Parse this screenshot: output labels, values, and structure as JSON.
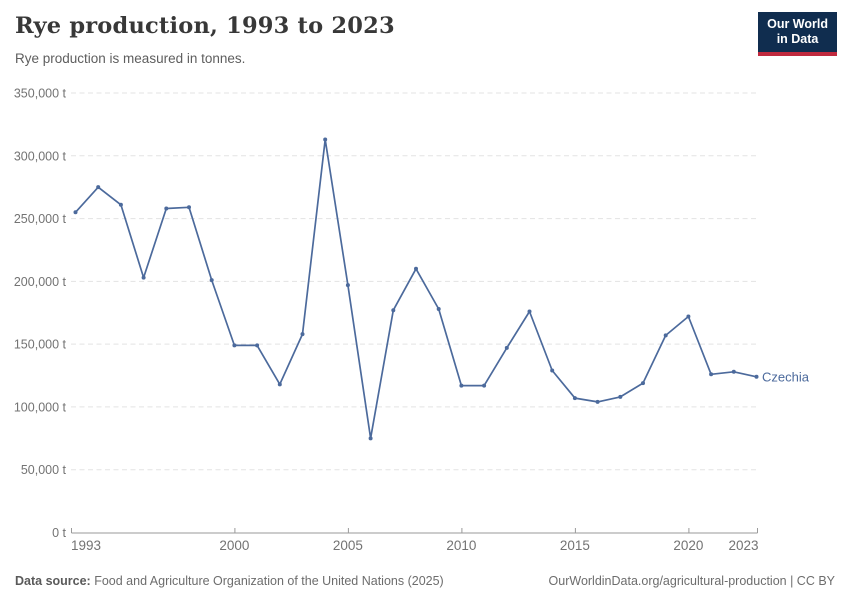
{
  "header": {
    "title": "Rye production, 1993 to 2023",
    "subtitle": "Rye production is measured in tonnes.",
    "logo_line1": "Our World",
    "logo_line2": "in Data"
  },
  "chart_data": {
    "type": "line",
    "title": "Rye production, 1993 to 2023",
    "unit": "tonnes",
    "xlabel": "",
    "ylabel": "",
    "xlim": [
      1993,
      2023
    ],
    "ylim": [
      0,
      350000
    ],
    "grid": "horizontal-dashed",
    "legend_position": "end-of-line-label",
    "x_ticks": [
      1993,
      2000,
      2005,
      2010,
      2015,
      2020,
      2023
    ],
    "x_tick_labels": [
      "1993",
      "2000",
      "2005",
      "2010",
      "2015",
      "2020",
      "2023"
    ],
    "y_ticks": [
      0,
      50000,
      100000,
      150000,
      200000,
      250000,
      300000,
      350000
    ],
    "y_tick_labels": [
      "0 t",
      "50,000 t",
      "100,000 t",
      "150,000 t",
      "200,000 t",
      "250,000 t",
      "300,000 t",
      "350,000 t"
    ],
    "x": [
      1993,
      1994,
      1995,
      1996,
      1997,
      1998,
      1999,
      2000,
      2001,
      2002,
      2003,
      2004,
      2005,
      2006,
      2007,
      2008,
      2009,
      2010,
      2011,
      2012,
      2013,
      2014,
      2015,
      2016,
      2017,
      2018,
      2019,
      2020,
      2021,
      2022,
      2023
    ],
    "series": [
      {
        "name": "Czechia",
        "color": "#4C6A9C",
        "values": [
          255000,
          275000,
          261000,
          203000,
          258000,
          259000,
          201000,
          149000,
          149000,
          118000,
          158000,
          313000,
          197000,
          75000,
          177000,
          210000,
          178000,
          117000,
          117000,
          147000,
          176000,
          129000,
          107000,
          104000,
          108000,
          119000,
          157000,
          172000,
          126000,
          128000,
          124000
        ]
      }
    ]
  },
  "footer": {
    "source_label": "Data source:",
    "source_text": " Food and Agriculture Organization of the United Nations (2025)",
    "credit": "OurWorldinData.org/agricultural-production | CC BY"
  },
  "colors": {
    "line": "#4C6A9C",
    "gridline": "#e3e3e3",
    "axis": "#9a9a9a",
    "axis_text": "#737373",
    "logo_bg": "#102D4F",
    "logo_accent": "#C0293E"
  }
}
